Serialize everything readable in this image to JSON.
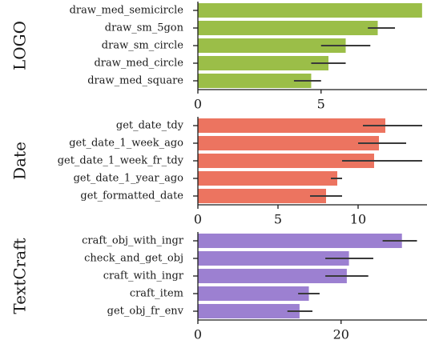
{
  "chart_data": [
    {
      "type": "bar",
      "orientation": "horizontal",
      "title": "LOGO",
      "color": "#9bbe48",
      "categories": [
        "draw_med_semicircle",
        "draw_sm_5gon",
        "draw_sm_circle",
        "draw_med_circle",
        "draw_med_square"
      ],
      "values": [
        9.1,
        7.3,
        6.0,
        5.3,
        4.6
      ],
      "error": [
        [
          9.1,
          9.1
        ],
        [
          6.9,
          8.0
        ],
        [
          5.0,
          7.0
        ],
        [
          4.6,
          6.0
        ],
        [
          3.9,
          5.0
        ]
      ],
      "xticks": [
        0,
        5
      ],
      "xlim": [
        0,
        9.3
      ]
    },
    {
      "type": "bar",
      "orientation": "horizontal",
      "title": "Date",
      "color": "#ec7460",
      "categories": [
        "get_date_tdy",
        "get_date_1_week_ago",
        "get_date_1_week_fr_tdy",
        "get_date_1_year_ago",
        "get_formatted_date"
      ],
      "values": [
        11.7,
        11.3,
        11.0,
        8.7,
        8.0
      ],
      "error": [
        [
          10.3,
          14.0
        ],
        [
          10.0,
          13.0
        ],
        [
          9.0,
          14.0
        ],
        [
          8.3,
          9.0
        ],
        [
          7.0,
          9.0
        ]
      ],
      "xticks": [
        0,
        5,
        10
      ],
      "xlim": [
        0,
        14.3
      ]
    },
    {
      "type": "bar",
      "orientation": "horizontal",
      "title": "TextCraft",
      "color": "#9c80d1",
      "categories": [
        "craft_obj_with_ingr",
        "check_and_get_obj",
        "craft_with_ingr",
        "craft_item",
        "get_obj_fr_env"
      ],
      "values": [
        28.5,
        21.1,
        20.8,
        15.5,
        14.2
      ],
      "error": [
        [
          25.8,
          30.6
        ],
        [
          17.8,
          24.5
        ],
        [
          17.8,
          23.8
        ],
        [
          14.0,
          17.0
        ],
        [
          12.5,
          16.0
        ]
      ],
      "xticks": [
        0,
        20
      ],
      "xlim": [
        0,
        32
      ]
    }
  ]
}
